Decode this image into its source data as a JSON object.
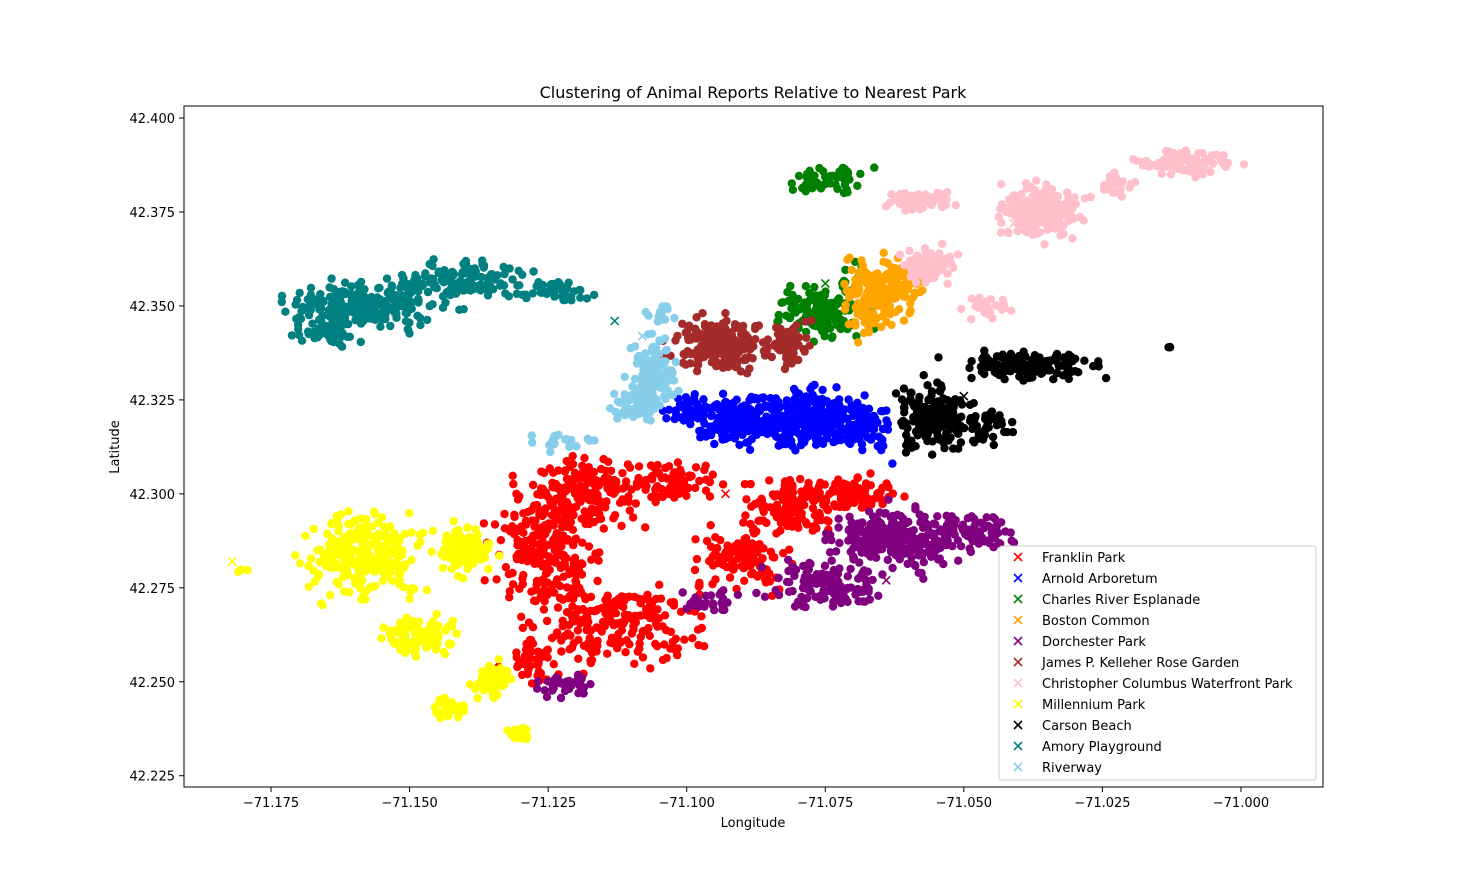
{
  "chart_data": {
    "type": "scatter",
    "title": "Clustering of Animal Reports Relative to Nearest Park",
    "xlabel": "Longitude",
    "ylabel": "Latitude",
    "xlim": [
      -71.1907,
      -70.9852
    ],
    "ylim": [
      42.222,
      42.4032
    ],
    "xticks": [
      -71.175,
      -71.15,
      -71.125,
      -71.1,
      -71.075,
      -71.05,
      -71.025,
      -71.0
    ],
    "xtick_labels": [
      "−71.175",
      "−71.150",
      "−71.125",
      "−71.100",
      "−71.075",
      "−71.050",
      "−71.025",
      "−71.000"
    ],
    "yticks": [
      42.225,
      42.25,
      42.275,
      42.3,
      42.325,
      42.35,
      42.375,
      42.4
    ],
    "ytick_labels": [
      "42.225",
      "42.250",
      "42.275",
      "42.300",
      "42.325",
      "42.350",
      "42.375",
      "42.400"
    ],
    "grid": false,
    "legend_position": "lower-right",
    "legend_marker": "x",
    "series": [
      {
        "name": "Franklin Park",
        "color": "#ff0000",
        "park": [
          -71.093,
          42.3
        ],
        "regions": [
          [
            -71.125,
            42.285,
            0.008,
            0.014,
            230
          ],
          [
            -71.118,
            42.3,
            0.009,
            0.008,
            170
          ],
          [
            -71.112,
            42.265,
            0.012,
            0.01,
            190
          ],
          [
            -71.102,
            42.303,
            0.006,
            0.005,
            70
          ],
          [
            -71.09,
            42.283,
            0.008,
            0.007,
            120
          ],
          [
            -71.08,
            42.297,
            0.007,
            0.006,
            130
          ],
          [
            -71.07,
            42.3,
            0.006,
            0.004,
            80
          ],
          [
            -71.128,
            42.255,
            0.004,
            0.006,
            50
          ]
        ]
      },
      {
        "name": "Arnold Arboretum",
        "color": "#0000ff",
        "park": [
          -71.091,
          42.317
        ],
        "regions": [
          [
            -71.09,
            42.32,
            0.008,
            0.006,
            200
          ],
          [
            -71.077,
            42.32,
            0.007,
            0.007,
            220
          ],
          [
            -71.068,
            42.318,
            0.004,
            0.006,
            80
          ],
          [
            -71.1,
            42.322,
            0.004,
            0.003,
            40
          ]
        ]
      },
      {
        "name": "Charles River Esplanade",
        "color": "#008000",
        "park": [
          -71.075,
          42.356
        ],
        "regions": [
          [
            -71.076,
            42.348,
            0.006,
            0.006,
            140
          ],
          [
            -71.078,
            42.383,
            0.003,
            0.002,
            25
          ],
          [
            -71.072,
            42.384,
            0.004,
            0.004,
            30
          ],
          [
            -71.07,
            42.358,
            0.002,
            0.004,
            15
          ]
        ]
      },
      {
        "name": "Boston Common",
        "color": "#ffa500",
        "park": [
          -71.063,
          42.357
        ],
        "regions": [
          [
            -71.066,
            42.353,
            0.005,
            0.009,
            180
          ],
          [
            -71.06,
            42.358,
            0.003,
            0.005,
            40
          ]
        ]
      },
      {
        "name": "Dorchester Park",
        "color": "#800080",
        "park": [
          -71.064,
          42.277
        ],
        "regions": [
          [
            -71.062,
            42.288,
            0.01,
            0.007,
            260
          ],
          [
            -71.075,
            42.276,
            0.008,
            0.005,
            120
          ],
          [
            -71.048,
            42.29,
            0.006,
            0.004,
            70
          ],
          [
            -71.122,
            42.249,
            0.004,
            0.003,
            35
          ],
          [
            -71.095,
            42.271,
            0.006,
            0.003,
            30
          ]
        ]
      },
      {
        "name": "James P. Kelleher Rose Garden",
        "color": "#a52a2a",
        "park": [
          -71.094,
          42.342
        ],
        "regions": [
          [
            -71.094,
            42.34,
            0.007,
            0.006,
            200
          ],
          [
            -71.082,
            42.34,
            0.004,
            0.005,
            60
          ]
        ]
      },
      {
        "name": "Christopher Columbus Waterfront Park",
        "color": "#ffc0cb",
        "park": [
          -71.041,
          42.372
        ],
        "regions": [
          [
            -71.036,
            42.375,
            0.006,
            0.006,
            220
          ],
          [
            -71.058,
            42.378,
            0.005,
            0.002,
            70
          ],
          [
            -71.056,
            42.361,
            0.004,
            0.004,
            100
          ],
          [
            -71.01,
            42.388,
            0.008,
            0.003,
            90
          ],
          [
            -71.045,
            42.35,
            0.004,
            0.003,
            25
          ],
          [
            -71.022,
            42.382,
            0.003,
            0.003,
            20
          ]
        ]
      },
      {
        "name": "Millennium Park",
        "color": "#ffff00",
        "park": [
          -71.182,
          42.282
        ],
        "regions": [
          [
            -71.158,
            42.284,
            0.009,
            0.01,
            260
          ],
          [
            -71.14,
            42.285,
            0.004,
            0.005,
            110
          ],
          [
            -71.148,
            42.262,
            0.006,
            0.005,
            80
          ],
          [
            -71.135,
            42.25,
            0.003,
            0.004,
            50
          ],
          [
            -71.13,
            42.236,
            0.002,
            0.002,
            30
          ],
          [
            -71.143,
            42.243,
            0.003,
            0.003,
            25
          ],
          [
            -71.18,
            42.28,
            0.001,
            0.001,
            4
          ]
        ]
      },
      {
        "name": "Carson Beach",
        "color": "#000000",
        "park": [
          -71.05,
          42.326
        ],
        "regions": [
          [
            -71.055,
            42.32,
            0.006,
            0.008,
            170
          ],
          [
            -71.038,
            42.334,
            0.01,
            0.003,
            150
          ],
          [
            -71.046,
            42.318,
            0.004,
            0.004,
            40
          ],
          [
            -71.013,
            42.339,
            0.0005,
            0.0005,
            3
          ]
        ]
      },
      {
        "name": "Amory Playground",
        "color": "#008080",
        "park": [
          -71.113,
          42.346
        ],
        "regions": [
          [
            -71.158,
            42.35,
            0.012,
            0.005,
            260
          ],
          [
            -71.14,
            42.357,
            0.01,
            0.004,
            130
          ],
          [
            -71.123,
            42.354,
            0.006,
            0.003,
            50
          ],
          [
            -71.165,
            42.343,
            0.005,
            0.003,
            40
          ]
        ]
      },
      {
        "name": "Riverway",
        "color": "#87ceeb",
        "park": [
          -71.108,
          42.342
        ],
        "regions": [
          [
            -71.106,
            42.332,
            0.004,
            0.008,
            130
          ],
          [
            -71.11,
            42.323,
            0.004,
            0.004,
            50
          ],
          [
            -71.122,
            42.314,
            0.005,
            0.002,
            20
          ],
          [
            -71.105,
            42.348,
            0.002,
            0.002,
            12
          ]
        ]
      }
    ]
  }
}
